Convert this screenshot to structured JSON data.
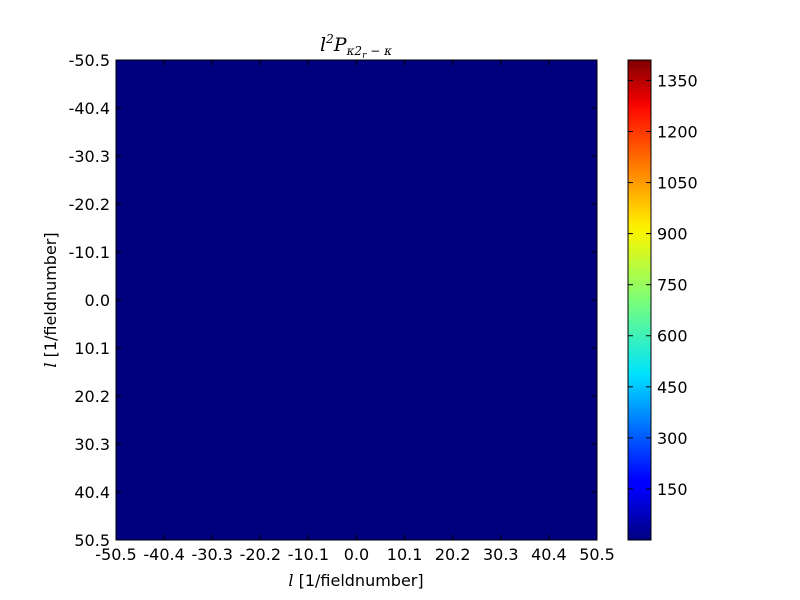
{
  "chart_data": {
    "type": "heatmap",
    "title": {
      "base": "l",
      "sup": "2",
      "main": "P",
      "sub": "κ2",
      "subsub": "r",
      "tail": " − κ"
    },
    "xlabel": {
      "italic": "l",
      "rest": " [1/fieldnumber]"
    },
    "ylabel": {
      "italic": "l",
      "rest": " [1/fieldnumber]"
    },
    "x_ticks": [
      "-50.5",
      "-40.4",
      "-30.3",
      "-20.2",
      "-10.1",
      "0.0",
      "10.1",
      "20.2",
      "30.3",
      "40.4",
      "50.5"
    ],
    "y_ticks": [
      "-50.5",
      "-40.4",
      "-30.3",
      "-20.2",
      "-10.1",
      "0.0",
      "10.1",
      "20.2",
      "30.3",
      "40.4",
      "50.5"
    ],
    "xlim": [
      -50.5,
      50.5
    ],
    "ylim": [
      -50.5,
      50.5
    ],
    "y_inverted": true,
    "colormap": "jet",
    "colorbar": {
      "ticks": [
        150,
        300,
        450,
        600,
        750,
        900,
        1050,
        1200,
        1350
      ],
      "tick_labels": [
        "150",
        "300",
        "450",
        "600",
        "750",
        "900",
        "1050",
        "1200",
        "1350"
      ],
      "range": [
        0,
        1410
      ]
    },
    "field_value_approx": 0,
    "field_color": "#00007f"
  }
}
